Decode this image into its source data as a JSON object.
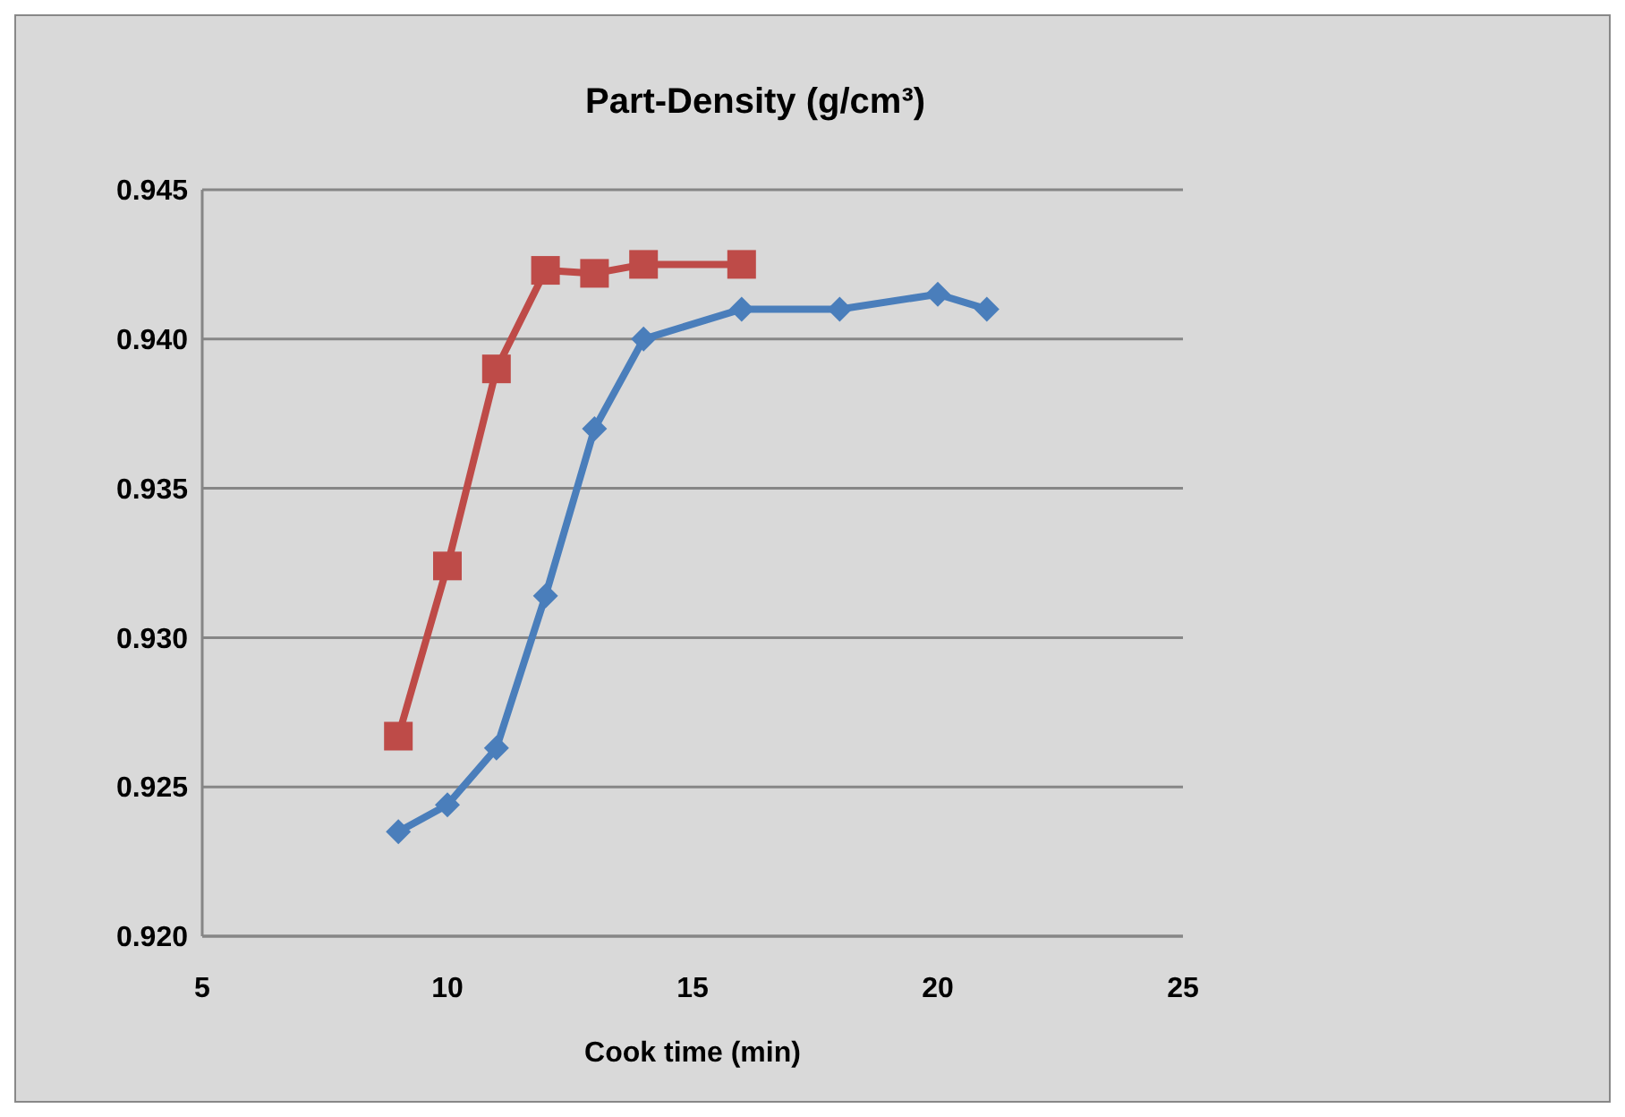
{
  "chart_data": {
    "type": "line",
    "title": "Part-Density (g/cm³)",
    "xlabel": "Cook time (min)",
    "xlim": [
      5,
      25
    ],
    "xticks": [
      5,
      10,
      15,
      20,
      25
    ],
    "ylim": [
      0.92,
      0.945
    ],
    "yticks": [
      {
        "value": 0.92,
        "label": "0.920"
      },
      {
        "value": 0.925,
        "label": "0.925"
      },
      {
        "value": 0.93,
        "label": "0.930"
      },
      {
        "value": 0.935,
        "label": "0.935"
      },
      {
        "value": 0.94,
        "label": "0.940"
      },
      {
        "value": 0.945,
        "label": "0.945"
      }
    ],
    "grid": "y",
    "series": [
      {
        "color": "#4a7ebb",
        "marker": "diamond",
        "x": [
          9,
          10,
          11,
          12,
          13,
          14,
          16,
          18,
          20,
          21
        ],
        "values": [
          0.9235,
          0.9244,
          0.9263,
          0.9314,
          0.937,
          0.94,
          0.941,
          0.941,
          0.9415,
          0.941
        ]
      },
      {
        "color": "#be4b48",
        "marker": "square",
        "x": [
          9,
          10,
          11,
          12,
          13,
          14,
          16
        ],
        "values": [
          0.9267,
          0.9324,
          0.939,
          0.9423,
          0.9422,
          0.9425,
          0.9425
        ]
      }
    ]
  }
}
